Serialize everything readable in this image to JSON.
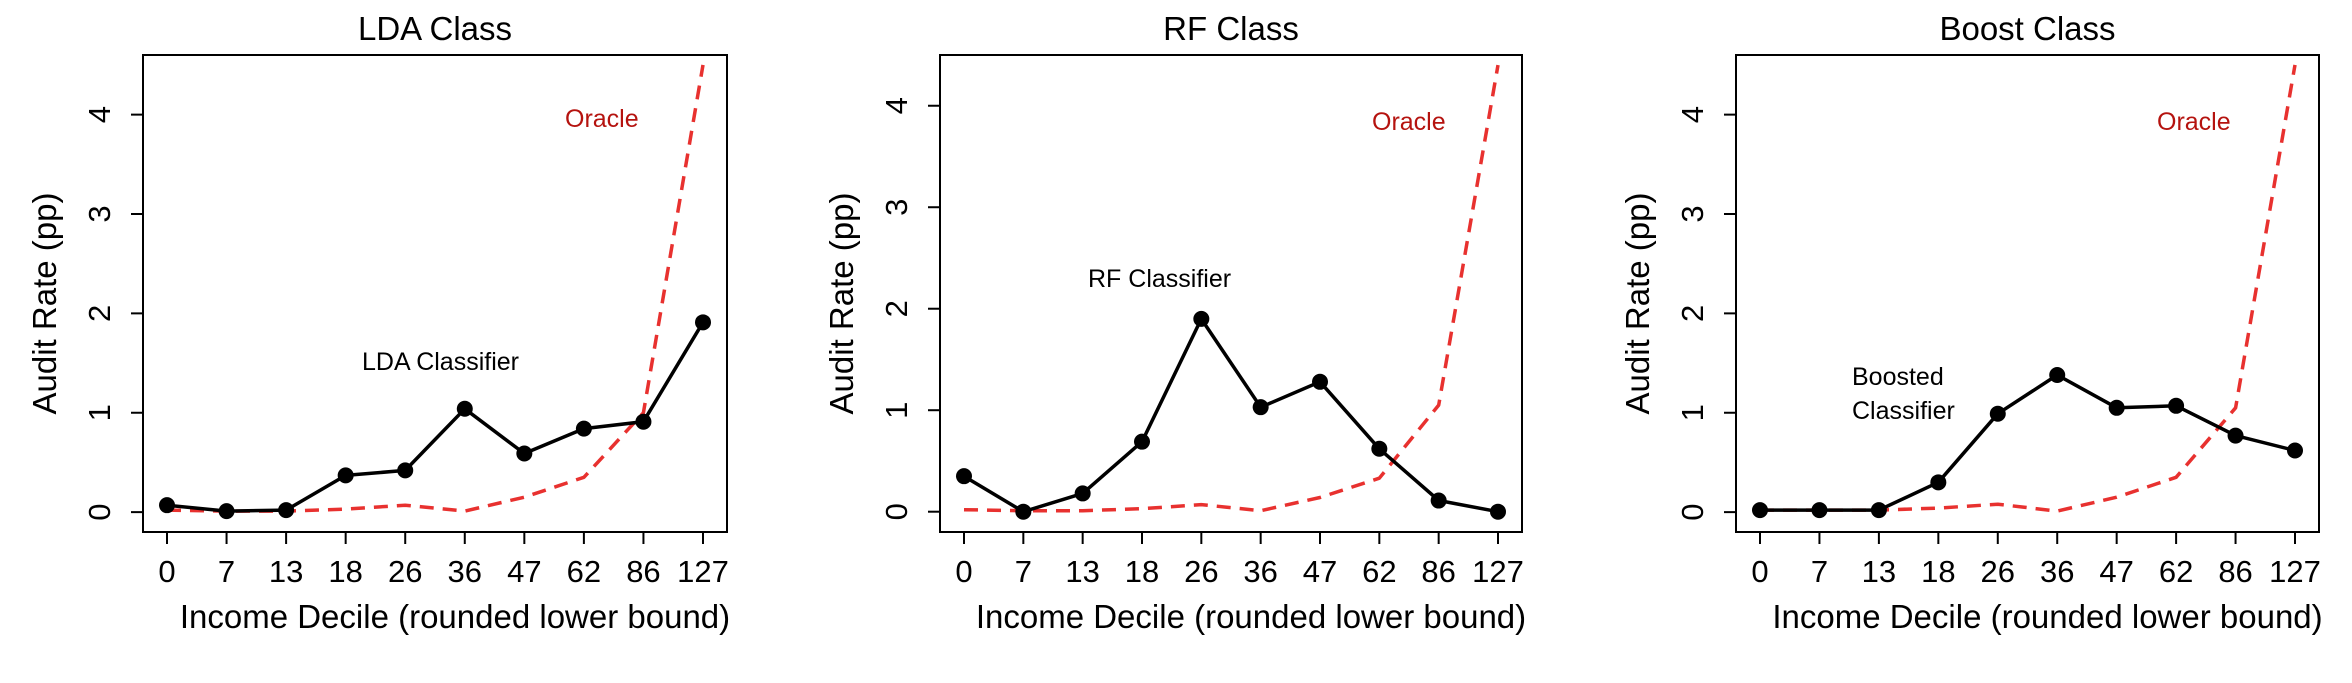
{
  "chart_data": [
    {
      "type": "line",
      "title": "LDA Class",
      "xlabel": "Income Decile (rounded lower bound)",
      "ylabel": "Audit Rate (pp)",
      "categories": [
        "0",
        "7",
        "13",
        "18",
        "26",
        "36",
        "47",
        "62",
        "86",
        "127"
      ],
      "ylim": [
        -0.2,
        4.6
      ],
      "yticks": [
        "0",
        "1",
        "2",
        "3",
        "4"
      ],
      "series": [
        {
          "name": "LDA Classifier",
          "style": "solid-markers",
          "color": "#000000",
          "values": [
            0.07,
            0.01,
            0.02,
            0.37,
            0.42,
            1.04,
            0.59,
            0.84,
            0.91,
            1.91
          ]
        },
        {
          "name": "Oracle",
          "style": "dashed",
          "color": "#e8312f",
          "values": [
            0.02,
            0.01,
            0.01,
            0.03,
            0.07,
            0.01,
            0.15,
            0.35,
            1.0,
            4.5
          ]
        }
      ],
      "annotations": [
        {
          "text": "LDA Classifier",
          "color": "#000000"
        },
        {
          "text": "Oracle",
          "color": "#b5130f"
        }
      ]
    },
    {
      "type": "line",
      "title": "RF Class",
      "xlabel": "Income Decile (rounded lower bound)",
      "ylabel": "Audit Rate (pp)",
      "categories": [
        "0",
        "7",
        "13",
        "18",
        "26",
        "36",
        "47",
        "62",
        "86",
        "127"
      ],
      "ylim": [
        -0.2,
        4.5
      ],
      "yticks": [
        "0",
        "1",
        "2",
        "3",
        "4"
      ],
      "series": [
        {
          "name": "RF Classifier",
          "style": "solid-markers",
          "color": "#000000",
          "values": [
            0.35,
            0.0,
            0.18,
            0.69,
            1.9,
            1.03,
            1.28,
            0.62,
            0.11,
            0.0
          ]
        },
        {
          "name": "Oracle",
          "style": "dashed",
          "color": "#e8312f",
          "values": [
            0.02,
            0.01,
            0.01,
            0.03,
            0.07,
            0.01,
            0.14,
            0.33,
            1.05,
            4.4
          ]
        }
      ],
      "annotations": [
        {
          "text": "RF Classifier",
          "color": "#000000"
        },
        {
          "text": "Oracle",
          "color": "#b5130f"
        }
      ]
    },
    {
      "type": "line",
      "title": "Boost Class",
      "xlabel": "Income Decile (rounded lower bound)",
      "ylabel": "Audit Rate (pp)",
      "categories": [
        "0",
        "7",
        "13",
        "18",
        "26",
        "36",
        "47",
        "62",
        "86",
        "127"
      ],
      "ylim": [
        -0.2,
        4.6
      ],
      "yticks": [
        "0",
        "1",
        "2",
        "3",
        "4"
      ],
      "series": [
        {
          "name": "Boosted Classifier",
          "style": "solid-markers",
          "color": "#000000",
          "values": [
            0.02,
            0.02,
            0.02,
            0.3,
            0.99,
            1.38,
            1.05,
            1.07,
            0.77,
            0.62
          ]
        },
        {
          "name": "Oracle",
          "style": "dashed",
          "color": "#e8312f",
          "values": [
            0.02,
            0.02,
            0.02,
            0.04,
            0.08,
            0.01,
            0.15,
            0.35,
            1.05,
            4.5
          ]
        }
      ],
      "annotations": [
        {
          "text": "Boosted",
          "color": "#000000"
        },
        {
          "text": "Classifier",
          "color": "#000000"
        },
        {
          "text": "Oracle",
          "color": "#b5130f"
        }
      ]
    }
  ]
}
